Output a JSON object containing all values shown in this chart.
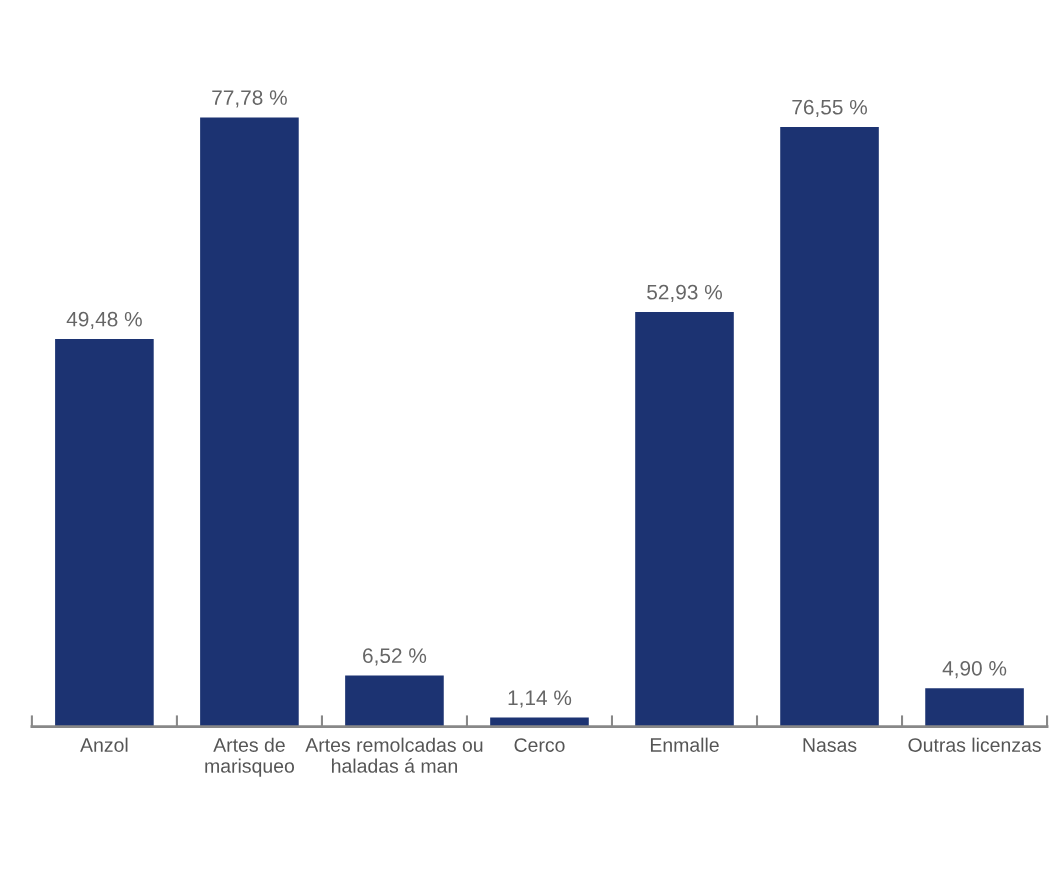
{
  "chart_data": {
    "type": "bar",
    "categories": [
      "Anzol",
      "Artes de\nmarisqueo",
      "Artes remolcadas ou\nhaladas á man",
      "Cerco",
      "Enmalle",
      "Nasas",
      "Outras licenzas"
    ],
    "values": [
      49.48,
      77.78,
      6.52,
      1.14,
      52.93,
      76.55,
      4.9
    ],
    "value_labels": [
      "49,48 %",
      "77,78 %",
      "6,52 %",
      "1,14 %",
      "52,93 %",
      "76,55 %",
      "4,90 %"
    ],
    "color": "#1c3372",
    "grid": false,
    "legend": false
  }
}
